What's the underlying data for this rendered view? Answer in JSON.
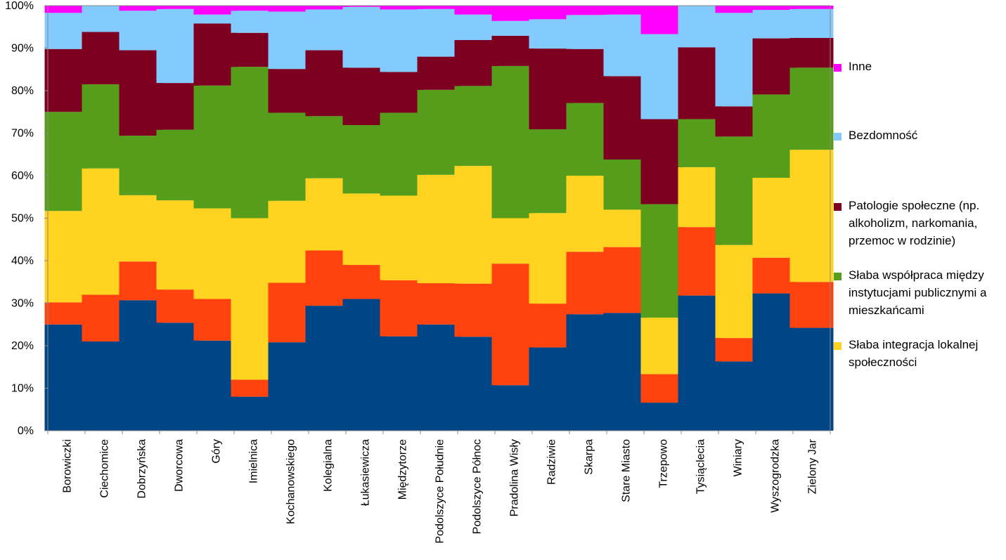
{
  "chart_data": {
    "type": "bar",
    "stacked": true,
    "percent": true,
    "ylim": [
      0,
      100
    ],
    "yticks": [
      "0%",
      "10%",
      "20%",
      "30%",
      "40%",
      "50%",
      "60%",
      "70%",
      "80%",
      "90%",
      "100%"
    ],
    "grid": true,
    "legend_position": "right",
    "categories": [
      "Borowiczki",
      "Ciechomice",
      "Dobrzyńska",
      "Dworcowa",
      "Góry",
      "Imielnica",
      "Kochanowskiego",
      "Kolegialna",
      "Łukasiewicza",
      "Międzytorze",
      "Podolszyce Południe",
      "Podolszyce Północ",
      "Pradolina Wisły",
      "Radziwie",
      "Skarpa",
      "Stare Miasto",
      "Trzepowo",
      "Tysiąclecia",
      "Winiary",
      "Wyszogrodzka",
      "Zielony Jar"
    ],
    "series": [
      {
        "name": "",
        "color": "#004586",
        "values": [
          25,
          21,
          30.7,
          25.4,
          21.2,
          8,
          20.8,
          29.4,
          31,
          22.2,
          25,
          22.1,
          10.7,
          19.6,
          27.4,
          27.7,
          6.6,
          31.8,
          16.3,
          32.3,
          24.2
        ]
      },
      {
        "name": "",
        "color": "#ff420e",
        "values": [
          5.2,
          11,
          9.1,
          7.8,
          9.8,
          4,
          14,
          13,
          8,
          13.2,
          9.7,
          12.5,
          28.6,
          10.3,
          14.7,
          15.5,
          6.7,
          16.1,
          5.5,
          8.4,
          10.8
        ]
      },
      {
        "name": "Słaba integracja lokalnej społeczności",
        "color": "#ffd320",
        "values": [
          21.5,
          29.7,
          15.6,
          21,
          21.3,
          38,
          19.3,
          17,
          16.8,
          19.9,
          25.5,
          27.7,
          10.7,
          21.3,
          17.9,
          8.8,
          13.3,
          14.1,
          21.9,
          18.8,
          31.1
        ]
      },
      {
        "name": "Słaba współpraca między instytucjami publicznymi a mieszkańcami",
        "color": "#579d1c",
        "values": [
          23.3,
          19.8,
          14,
          16.6,
          28.9,
          35.6,
          20.7,
          14.6,
          16.1,
          19.5,
          20,
          18.8,
          35.8,
          19.7,
          17.1,
          11.8,
          26.7,
          11.3,
          25.5,
          19.6,
          19.3
        ]
      },
      {
        "name": "Patologie społeczne (np. alkoholizm, narkomania, przemoc w rodzinie)",
        "color": "#7e0021",
        "values": [
          14.8,
          12.3,
          20.1,
          11,
          14.6,
          8,
          10.3,
          15.5,
          13.5,
          9.6,
          7.8,
          10.8,
          7.1,
          19,
          12.7,
          19.6,
          20,
          16.9,
          7.1,
          13.2,
          7
        ]
      },
      {
        "name": "Bezdomność",
        "color": "#83caff",
        "values": [
          8.5,
          6.2,
          9.3,
          17.4,
          2.1,
          5.2,
          13.5,
          9.6,
          14.3,
          14.7,
          11.2,
          6,
          3.5,
          6.9,
          8,
          14.5,
          20,
          9.8,
          22,
          6.7,
          6.8
        ]
      },
      {
        "name": "Inne",
        "color": "#ff00ff",
        "values": [
          1.7,
          0,
          1.2,
          0.8,
          2.1,
          1.2,
          1.4,
          0.9,
          0.3,
          0.9,
          0.8,
          2.1,
          3.6,
          3.2,
          2.2,
          2.1,
          6.7,
          0,
          1.7,
          1,
          0.8
        ]
      }
    ]
  }
}
